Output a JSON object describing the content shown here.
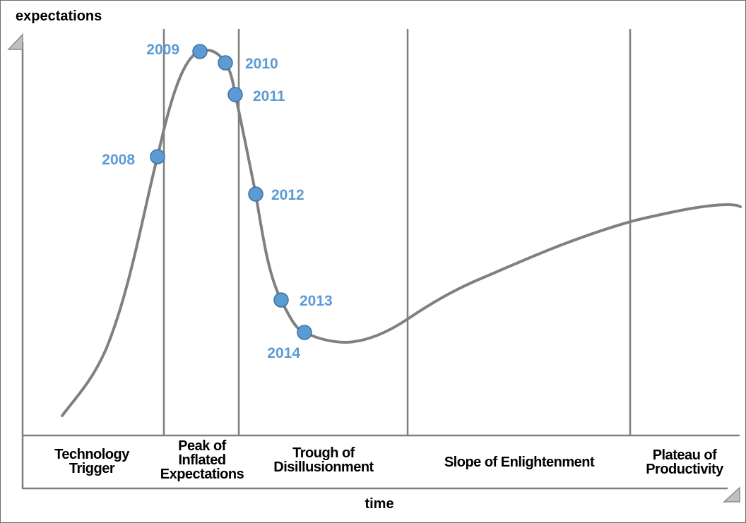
{
  "chart_data": {
    "type": "line",
    "title": "",
    "ylabel": "expectations",
    "xlabel": "time",
    "phases": [
      {
        "lines": [
          "Technology",
          "Trigger"
        ]
      },
      {
        "lines": [
          "Peak of",
          "Inflated",
          "Expectations"
        ]
      },
      {
        "lines": [
          "Trough of",
          "Disillusionment"
        ]
      },
      {
        "lines": [
          "Slope of Enlightenment"
        ]
      },
      {
        "lines": [
          "Plateau of",
          "Productivity"
        ]
      }
    ],
    "points": [
      {
        "label": "2008",
        "phase": "Technology Trigger / Peak of Inflated Expectations"
      },
      {
        "label": "2009",
        "phase": "Peak of Inflated Expectations"
      },
      {
        "label": "2010",
        "phase": "Peak of Inflated Expectations"
      },
      {
        "label": "2011",
        "phase": "Trough of Disillusionment"
      },
      {
        "label": "2012",
        "phase": "Trough of Disillusionment"
      },
      {
        "label": "2013",
        "phase": "Trough of Disillusionment"
      },
      {
        "label": "2014",
        "phase": "Trough of Disillusionment"
      }
    ],
    "grid": false,
    "colors": {
      "curve": "#808080",
      "axis": "#7f7f7f",
      "marker_fill": "#5b9bd5",
      "marker_stroke": "#41719c",
      "year_text": "#5b9bd5"
    }
  }
}
